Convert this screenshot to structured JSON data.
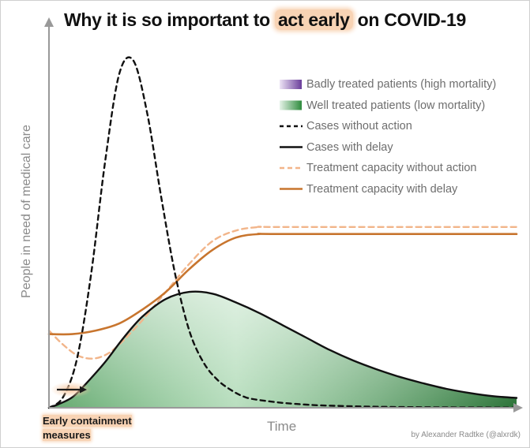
{
  "title": {
    "before": "Why it is so important to ",
    "highlight": "act early",
    "after": " on COVID-19"
  },
  "credit": "by Alexander Radtke (@alxrdk)",
  "annotation": {
    "line1": "Early containment",
    "line2": "measures"
  },
  "colors": {
    "badly_treated": "#7b4fa8",
    "well_treated": "#2e8b3d",
    "cases": "#111111",
    "capacity_without_action": "#f2b58a",
    "capacity_with_delay": "#c8752e",
    "highlight": "#f8d3b4",
    "axis": "#999999"
  },
  "chart_data": {
    "type": "line",
    "xlabel": "Time",
    "ylabel": "People in need of medical care",
    "xlim": [
      0,
      100
    ],
    "ylim": [
      0,
      100
    ],
    "grid": false,
    "legend_position": "top-right",
    "legend": [
      {
        "label": "Badly treated patients (high mortality)",
        "swatch": "area-purple"
      },
      {
        "label": "Well treated patients (low mortality)",
        "swatch": "area-green"
      },
      {
        "label": "Cases without action",
        "swatch": "line-black-dashed"
      },
      {
        "label": "Cases with delay",
        "swatch": "line-black"
      },
      {
        "label": "Treatment capacity without action",
        "swatch": "line-lightorange-dashed"
      },
      {
        "label": "Treatment capacity with delay",
        "swatch": "line-orange"
      }
    ],
    "series": [
      {
        "name": "Cases without action",
        "style": "dashed",
        "x": [
          0,
          3,
          6,
          9,
          12,
          15,
          18,
          21,
          24,
          27,
          30,
          33,
          36,
          39,
          42,
          45,
          50,
          55,
          60,
          70,
          80,
          90,
          100
        ],
        "y": [
          0,
          3,
          14,
          38,
          70,
          95,
          99,
          84,
          60,
          38,
          22,
          13,
          8,
          5,
          3,
          2.2,
          1.4,
          0.9,
          0.6,
          0.3,
          0.15,
          0.1,
          0.05
        ]
      },
      {
        "name": "Cases with delay",
        "style": "solid",
        "x": [
          0,
          2,
          5,
          8,
          12,
          16,
          20,
          25,
          30,
          35,
          40,
          45,
          50,
          55,
          60,
          65,
          70,
          75,
          80,
          85,
          90,
          95,
          100
        ],
        "y": [
          0,
          1,
          3,
          7,
          13,
          20,
          26,
          31,
          33,
          32.5,
          30,
          27,
          23.5,
          20,
          16.5,
          13.5,
          11,
          8.8,
          7,
          5.4,
          4.2,
          3.3,
          2.8
        ]
      },
      {
        "name": "Treatment capacity without action",
        "style": "dashed",
        "x": [
          0,
          3,
          6,
          9,
          12,
          15,
          20,
          25,
          30,
          35,
          40,
          45,
          50,
          100
        ],
        "y": [
          22,
          18,
          15,
          14,
          15,
          18,
          25,
          33,
          41,
          47.5,
          50.5,
          51.5,
          51.5,
          51.5
        ]
      },
      {
        "name": "Treatment capacity with delay",
        "style": "solid",
        "x": [
          0,
          5,
          10,
          15,
          20,
          25,
          30,
          35,
          40,
          45,
          50,
          100
        ],
        "y": [
          21,
          21,
          22,
          24,
          28,
          33,
          39.5,
          45,
          48.5,
          49.5,
          49.5,
          49.5
        ]
      }
    ]
  }
}
